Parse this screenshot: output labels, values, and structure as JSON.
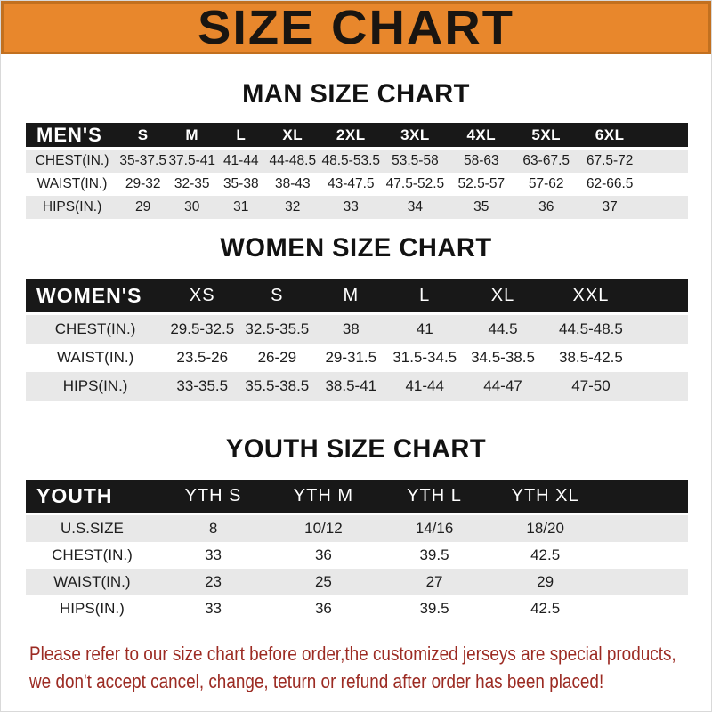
{
  "banner": {
    "title": "SIZE CHART",
    "bg_color": "#e8872c",
    "border_color": "#c2701f",
    "text_color": "#191511"
  },
  "sections": [
    {
      "id": "men",
      "heading": "MAN SIZE CHART",
      "header_label": "MEN'S",
      "columns": [
        "S",
        "M",
        "L",
        "XL",
        "2XL",
        "3XL",
        "4XL",
        "5XL",
        "6XL"
      ],
      "rows": [
        {
          "label": "CHEST(IN.)",
          "values": [
            "35-37.5",
            "37.5-41",
            "41-44",
            "44-48.5",
            "48.5-53.5",
            "53.5-58",
            "58-63",
            "63-67.5",
            "67.5-72"
          ]
        },
        {
          "label": "WAIST(IN.)",
          "values": [
            "29-32",
            "32-35",
            "35-38",
            "38-43",
            "43-47.5",
            "47.5-52.5",
            "52.5-57",
            "57-62",
            "62-66.5"
          ]
        },
        {
          "label": "HIPS(IN.)",
          "values": [
            "29",
            "30",
            "31",
            "32",
            "33",
            "34",
            "35",
            "36",
            "37"
          ]
        }
      ]
    },
    {
      "id": "women",
      "heading": "WOMEN SIZE CHART",
      "header_label": "WOMEN'S",
      "columns": [
        "XS",
        "S",
        "M",
        "L",
        "XL",
        "XXL"
      ],
      "rows": [
        {
          "label": "CHEST(IN.)",
          "values": [
            "29.5-32.5",
            "32.5-35.5",
            "38",
            "41",
            "44.5",
            "44.5-48.5"
          ]
        },
        {
          "label": "WAIST(IN.)",
          "values": [
            "23.5-26",
            "26-29",
            "29-31.5",
            "31.5-34.5",
            "34.5-38.5",
            "38.5-42.5"
          ]
        },
        {
          "label": "HIPS(IN.)",
          "values": [
            "33-35.5",
            "35.5-38.5",
            "38.5-41",
            "41-44",
            "44-47",
            "47-50"
          ]
        }
      ]
    },
    {
      "id": "youth",
      "heading": "YOUTH SIZE CHART",
      "header_label": "YOUTH",
      "columns": [
        "YTH S",
        "YTH M",
        "YTH L",
        "YTH XL"
      ],
      "rows": [
        {
          "label": "U.S.SIZE",
          "values": [
            "8",
            "10/12",
            "14/16",
            "18/20"
          ]
        },
        {
          "label": "CHEST(IN.)",
          "values": [
            "33",
            "36",
            "39.5",
            "42.5"
          ]
        },
        {
          "label": "WAIST(IN.)",
          "values": [
            "23",
            "25",
            "27",
            "29"
          ]
        },
        {
          "label": "HIPS(IN.)",
          "values": [
            "33",
            "36",
            "39.5",
            "42.5"
          ]
        }
      ]
    }
  ],
  "footer": {
    "text_color": "#9c2b23",
    "lines": [
      "Please refer to our size chart before order,the customized jerseys are special products,",
      "we don't accept cancel, change, teturn or refund after order has been placed!"
    ]
  }
}
